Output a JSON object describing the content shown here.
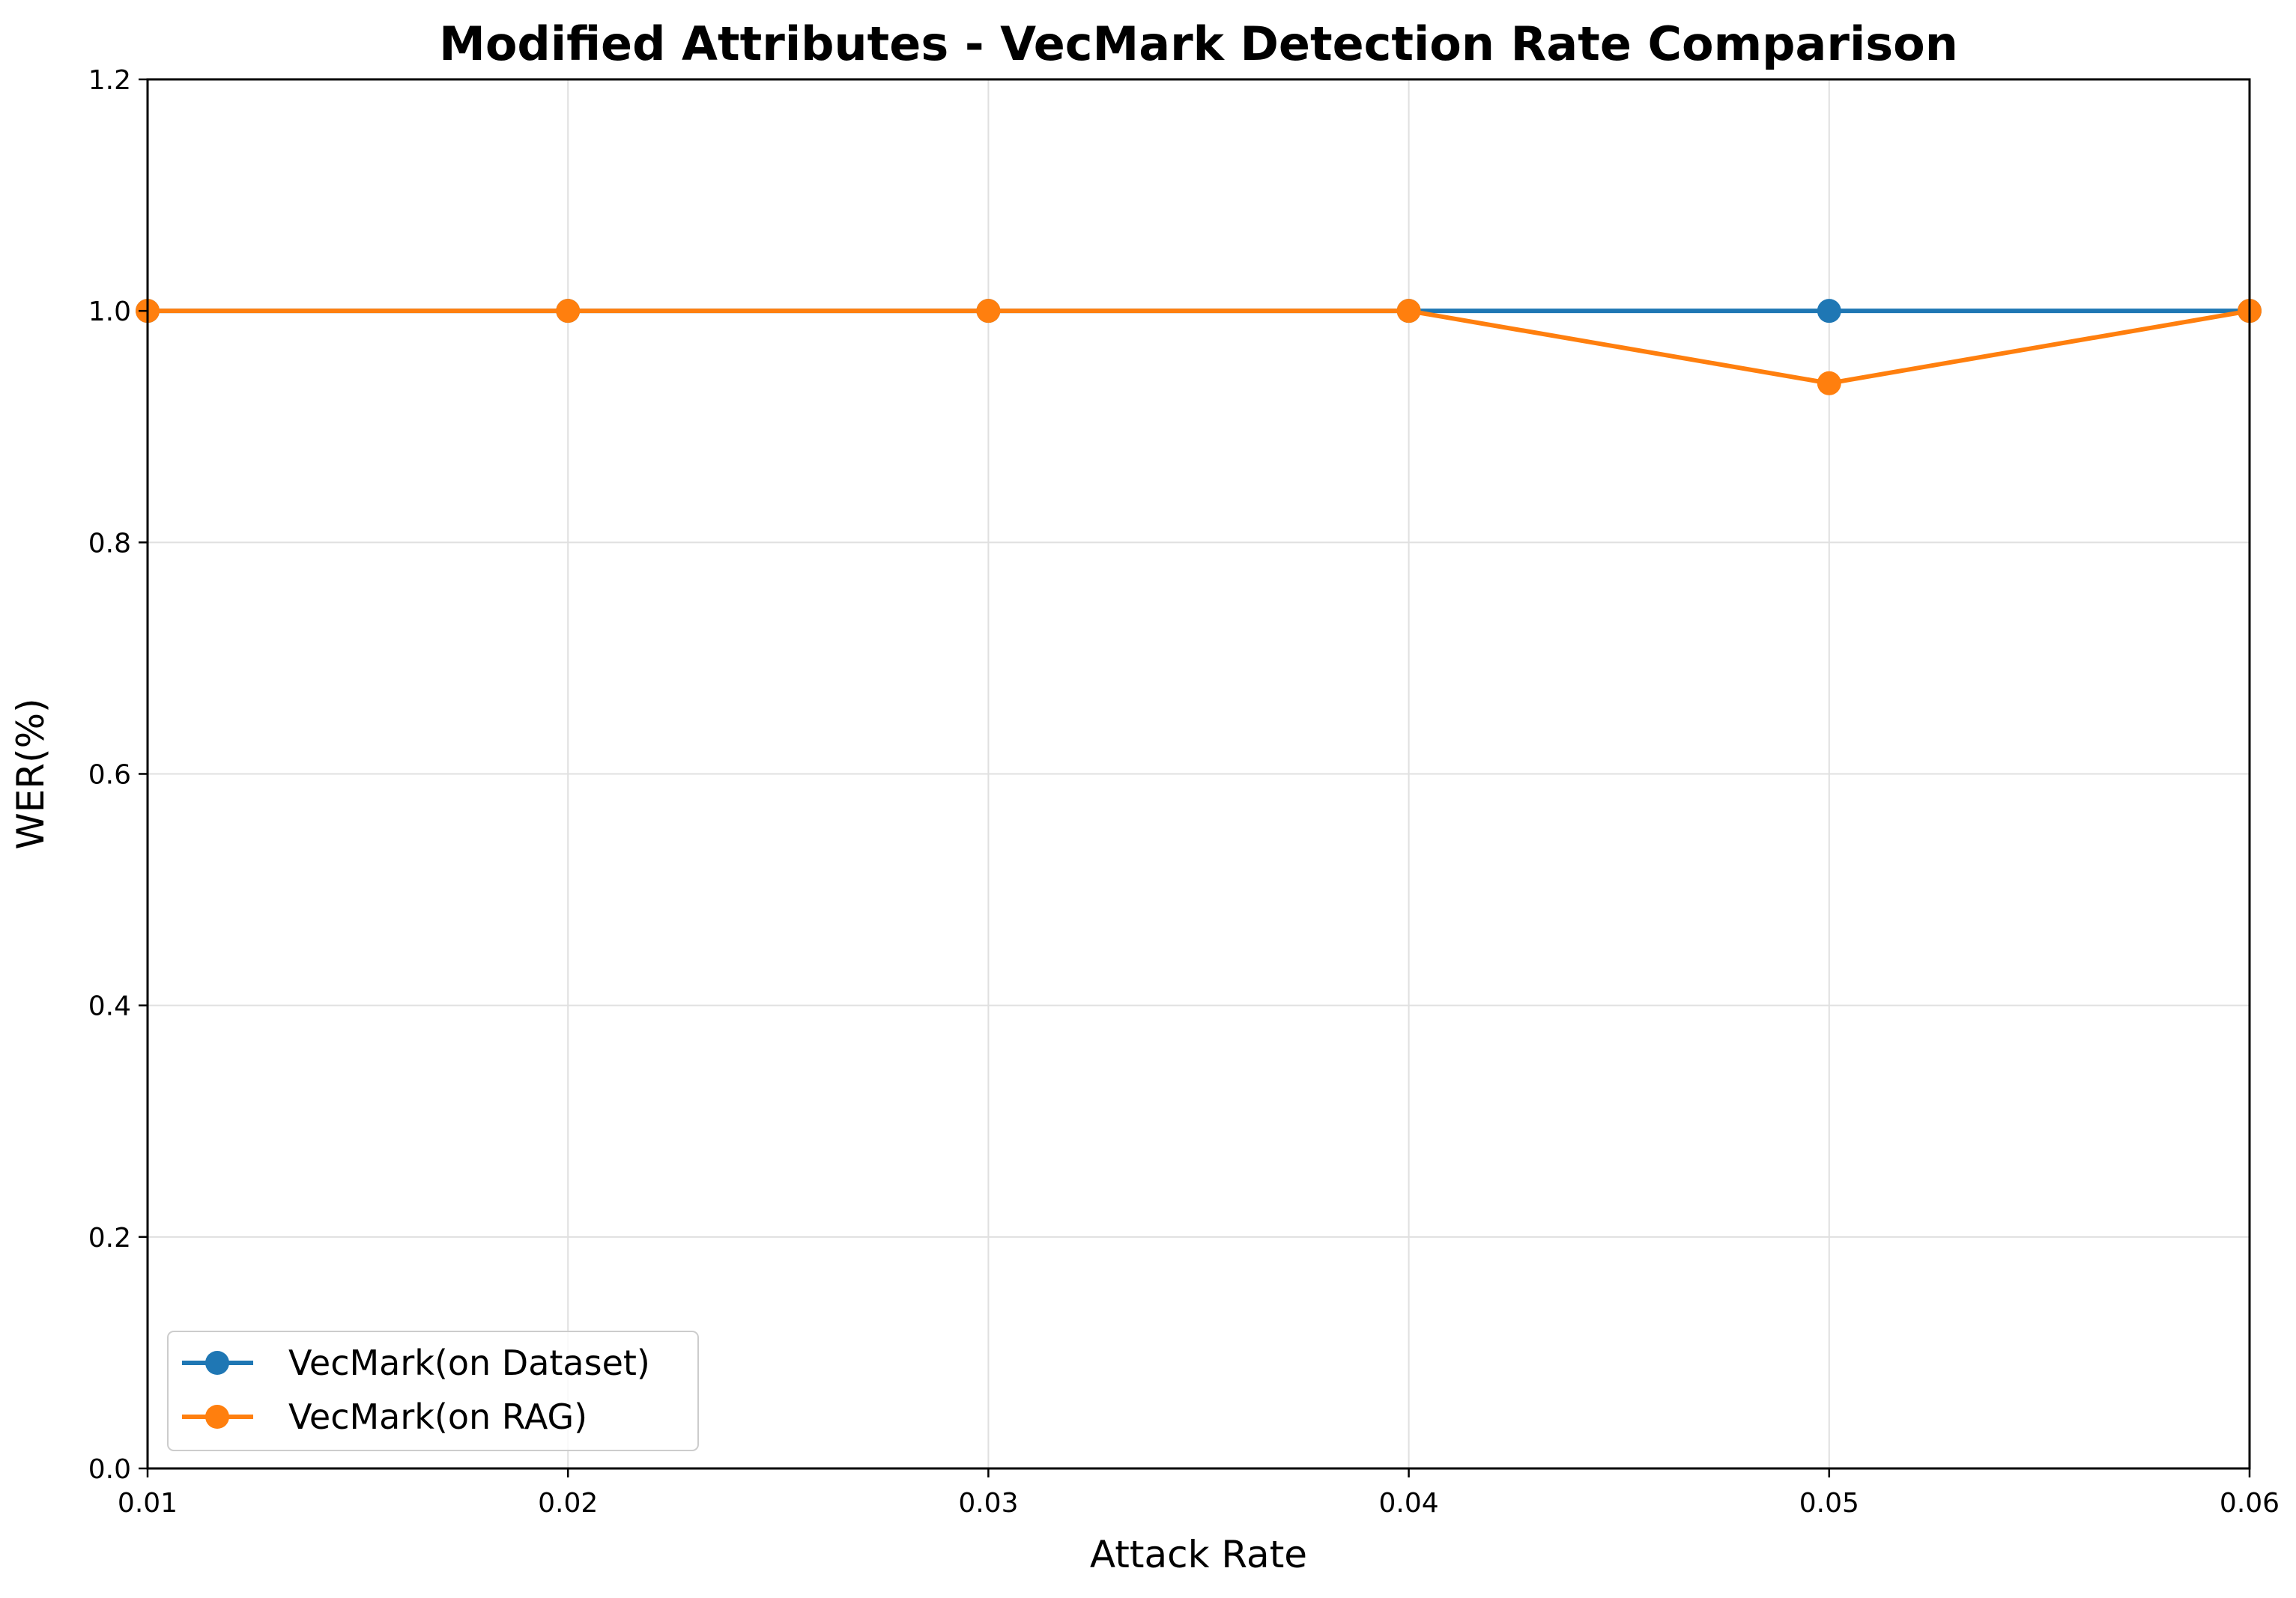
{
  "chart_data": {
    "type": "line",
    "title": "Modified Attributes - VecMark Detection Rate Comparison",
    "xlabel": "Attack Rate",
    "ylabel": "WER(%)",
    "x": [
      0.01,
      0.02,
      0.03,
      0.04,
      0.05,
      0.06
    ],
    "xlim": [
      0.01,
      0.06
    ],
    "ylim": [
      0.0,
      1.2
    ],
    "x_ticks": [
      "0.01",
      "0.02",
      "0.03",
      "0.04",
      "0.05",
      "0.06"
    ],
    "y_ticks": [
      "0.0",
      "0.2",
      "0.4",
      "0.6",
      "0.8",
      "1.0",
      "1.2"
    ],
    "grid": true,
    "legend_position": "lower-left",
    "series": [
      {
        "name": "VecMark(on Dataset)",
        "color": "#1f77b4",
        "marker": "circle",
        "values": [
          1.0,
          1.0,
          1.0,
          1.0,
          1.0,
          1.0
        ]
      },
      {
        "name": "VecMark(on RAG)",
        "color": "#ff7f0e",
        "marker": "circle",
        "values": [
          1.0,
          1.0,
          1.0,
          1.0,
          0.9375,
          1.0
        ]
      }
    ]
  }
}
